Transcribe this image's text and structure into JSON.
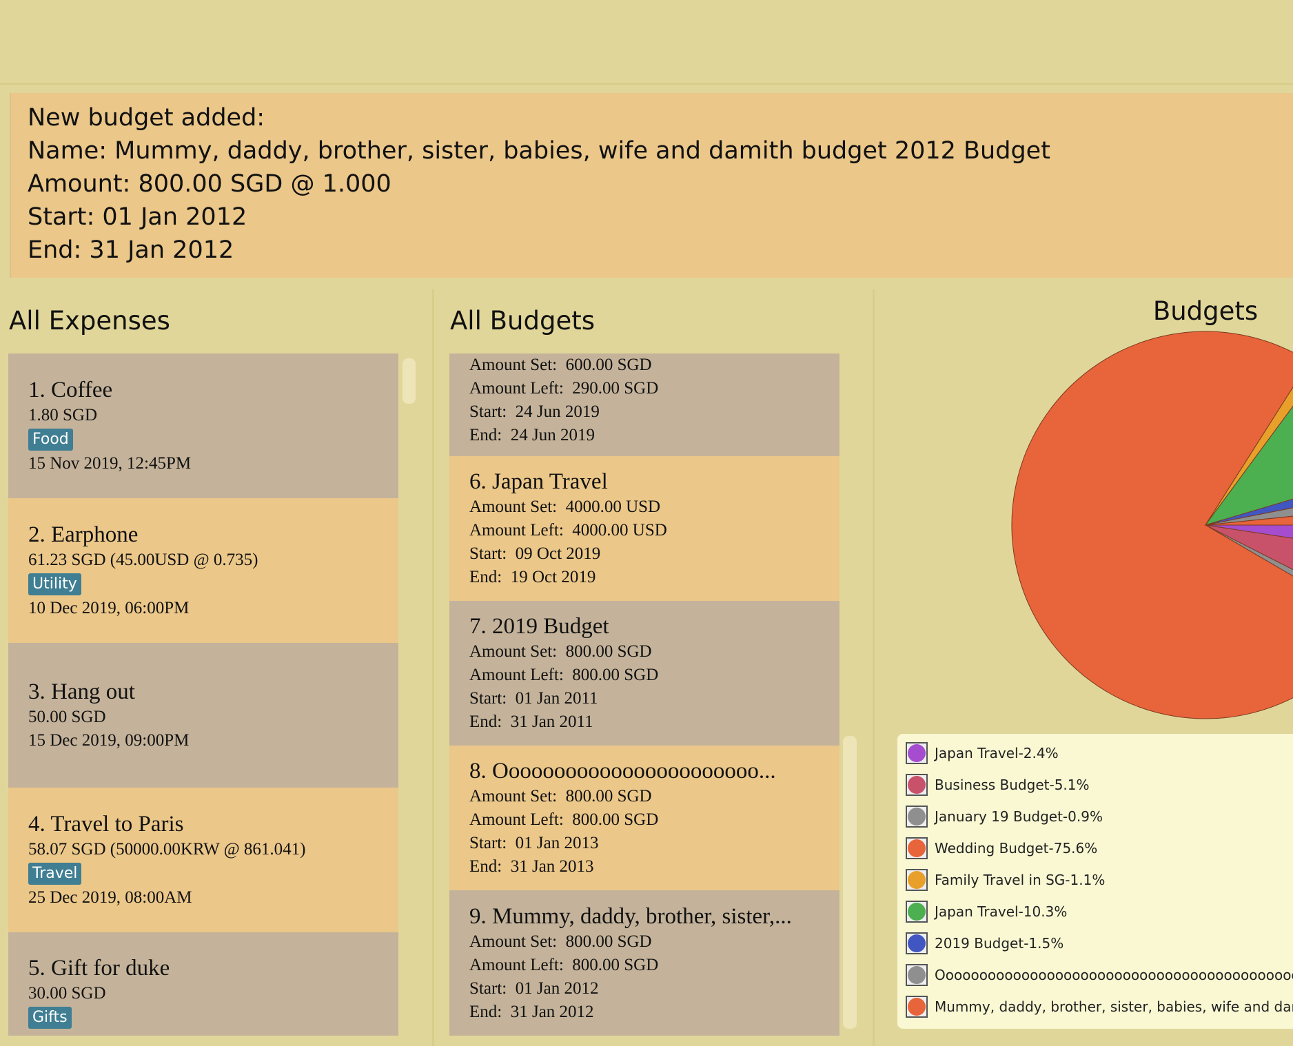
{
  "result": {
    "lines": [
      "New budget added:",
      "Name: Mummy, daddy, brother, sister, babies, wife and damith budget 2012 Budget",
      "Amount: 800.00 SGD @ 1.000",
      "Start: 01 Jan 2012",
      "End: 31 Jan 2012"
    ]
  },
  "expenses": {
    "title": "All Expenses",
    "items": [
      {
        "title": "1.  Coffee",
        "amount": "1.80 SGD",
        "tag": "Food",
        "date": "15 Nov 2019, 12:45PM"
      },
      {
        "title": "2.  Earphone",
        "amount": "61.23 SGD (45.00USD @ 0.735)",
        "tag": "Utility",
        "date": "10 Dec 2019, 06:00PM"
      },
      {
        "title": "3.  Hang out",
        "amount": "50.00 SGD",
        "date": "15 Dec 2019, 09:00PM"
      },
      {
        "title": "4.  Travel to Paris",
        "amount": "58.07 SGD (50000.00KRW @ 861.041)",
        "tag": "Travel",
        "date": "25 Dec 2019, 08:00AM"
      },
      {
        "title": "5.  Gift for duke",
        "amount": "30.00 SGD",
        "tag": "Gifts"
      }
    ]
  },
  "budgets": {
    "title": "All Budgets",
    "items": [
      {
        "lines": [
          "Amount Set:  600.00 SGD",
          "Amount Left:  290.00 SGD",
          "Start:  24 Jun 2019",
          "End:  24 Jun 2019"
        ]
      },
      {
        "title": "6.  Japan Travel",
        "lines": [
          "Amount Set:  4000.00 USD",
          "Amount Left:  4000.00 USD",
          "Start:  09 Oct 2019",
          "End:  19 Oct 2019"
        ]
      },
      {
        "title": "7.  2019 Budget",
        "lines": [
          "Amount Set:  800.00 SGD",
          "Amount Left:  800.00 SGD",
          "Start:  01 Jan 2011",
          "End:  31 Jan 2011"
        ]
      },
      {
        "title": "8.  Ooooooooooooooooooooooo...",
        "lines": [
          "Amount Set:  800.00 SGD",
          "Amount Left:  800.00 SGD",
          "Start:  01 Jan 2013",
          "End:  31 Jan 2013"
        ]
      },
      {
        "title": "9.  Mummy, daddy, brother, sister,...",
        "lines": [
          "Amount Set:  800.00 SGD",
          "Amount Left:  800.00 SGD",
          "Start:  01 Jan 2012",
          "End:  31 Jan 2012"
        ]
      }
    ]
  },
  "chart_data": {
    "type": "pie",
    "title": "Budgets",
    "categories": [
      "Japan Travel-2.4%",
      "Business Budget-5.1%",
      "January 19 Budget-0.9%",
      "Wedding Budget-75.6%",
      "Family Travel in SG-1.1%",
      "Japan Travel-10.3%",
      "2019 Budget-1.5%",
      "Ooooooooooooooooooooooooooooooooooooooooooooooooooo",
      "Mummy, daddy, brother, sister, babies, wife and damith"
    ],
    "values": [
      2.4,
      5.1,
      0.9,
      75.6,
      1.1,
      10.3,
      1.5,
      1.5,
      1.6
    ],
    "colors": [
      "#a64ccf",
      "#c9526b",
      "#8f8f8f",
      "#e8643a",
      "#e8a02b",
      "#4caf50",
      "#4256c2",
      "#8f8f8f",
      "#e8643a"
    ]
  }
}
